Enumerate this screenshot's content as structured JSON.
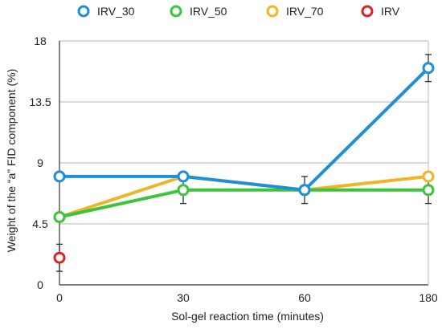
{
  "chart_data": {
    "type": "line",
    "title": "",
    "xlabel": "Sol-gel reaction time (minutes)",
    "ylabel": "Weight of the “a” FID component (%)",
    "categories": [
      "0",
      "30",
      "60",
      "180"
    ],
    "ylim": [
      0,
      18
    ],
    "y_ticks": [
      "0",
      "4.5",
      "9",
      "13.5",
      "18"
    ],
    "y_tick_values": [
      0,
      4.5,
      9,
      13.5,
      18
    ],
    "grid": "horizontal",
    "legend_position": "top",
    "series": [
      {
        "name": "IRV_30",
        "color": "#1f8fd6",
        "values": [
          8.0,
          8.0,
          7.0,
          16.0
        ],
        "errors": [
          null,
          null,
          null,
          1.0
        ]
      },
      {
        "name": "IRV_50",
        "color": "#3cc43c",
        "values": [
          5.0,
          7.0,
          7.0,
          7.0
        ],
        "errors": [
          null,
          1.0,
          1.0,
          1.0
        ]
      },
      {
        "name": "IRV_70",
        "color": "#f0b429",
        "values": [
          5.0,
          8.0,
          7.0,
          8.0
        ],
        "errors": [
          null,
          null,
          null,
          null
        ]
      },
      {
        "name": "IRV",
        "color": "#dd2222",
        "values": [
          2.0,
          null,
          null,
          null
        ],
        "errors": [
          1.0,
          null,
          null,
          null
        ]
      }
    ]
  }
}
